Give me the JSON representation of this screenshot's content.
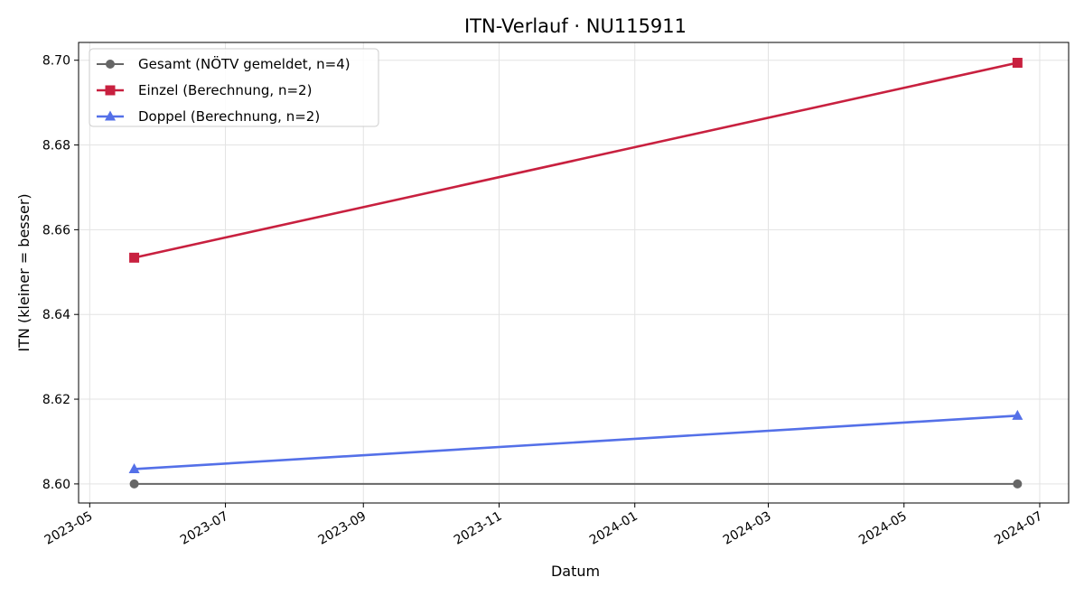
{
  "chart_data": {
    "type": "line",
    "title": "ITN-Verlauf · NU115911",
    "xlabel": "Datum",
    "ylabel": "ITN  (kleiner = besser)",
    "x_ticks": [
      "2023-05",
      "2023-07",
      "2023-09",
      "2023-11",
      "2024-01",
      "2024-03",
      "2024-05",
      "2024-07"
    ],
    "y_ticks": [
      "8.60",
      "8.62",
      "8.64",
      "8.66",
      "8.68",
      "8.70"
    ],
    "xlim": [
      "2023-04-26",
      "2024-07-14"
    ],
    "ylim": [
      8.5955,
      8.7042
    ],
    "grid": true,
    "legend_position": "top-left",
    "x": [
      "2023-05-21",
      "2024-06-21"
    ],
    "series": [
      {
        "name": "Gesamt (NÖTV gemeldet, n=4)",
        "values": [
          8.6,
          8.6
        ],
        "color": "#666666",
        "marker": "circle"
      },
      {
        "name": "Einzel (Berechnung, n=2)",
        "values": [
          8.6534,
          8.6994
        ],
        "color": "#c8203f",
        "marker": "square"
      },
      {
        "name": "Doppel (Berechnung, n=2)",
        "values": [
          8.6035,
          8.6161
        ],
        "color": "#5470e8",
        "marker": "triangle"
      }
    ]
  }
}
